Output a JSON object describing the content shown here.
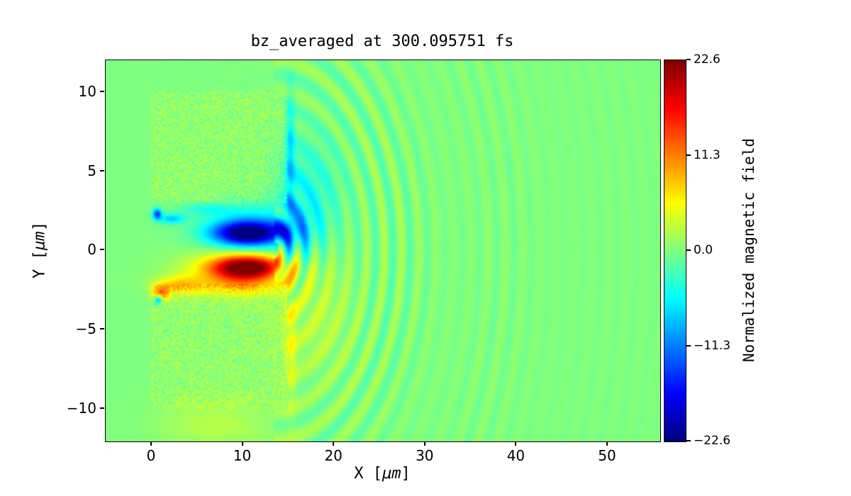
{
  "chart_data": {
    "type": "heatmap",
    "title": "bz_averaged at 300.095751 fs",
    "xlabel": "X [μm]",
    "ylabel": "Y [μm]",
    "colorbar_label": "Normalized magnetic field",
    "colormap": "jet",
    "grid": false,
    "xlim": [
      -5.05,
      55.75
    ],
    "ylim": [
      -12.05,
      12.0
    ],
    "clim": [
      -22.6,
      22.6
    ],
    "x_ticks": {
      "values": [
        0,
        10,
        20,
        30,
        40,
        50
      ],
      "labels": [
        "0",
        "10",
        "20",
        "30",
        "40",
        "50"
      ]
    },
    "y_ticks": {
      "values": [
        10,
        5,
        0,
        -5,
        -10
      ],
      "labels": [
        "10",
        "5",
        "0",
        "−5",
        "−10"
      ]
    },
    "colorbar_ticks": {
      "values": [
        22.6,
        11.3,
        0.0,
        -11.3,
        -22.6
      ],
      "labels": [
        "22.6",
        "11.3",
        "0.0",
        "−11.3",
        "−22.6"
      ]
    },
    "features": {
      "background_value": 0,
      "target_blocks": [
        {
          "x": [
            0,
            14.8
          ],
          "y": [
            3.0,
            10.0
          ],
          "speckle_amplitude": 2.2,
          "bias": 0.8
        },
        {
          "x": [
            0,
            14.8
          ],
          "y": [
            -10.0,
            -2.1
          ],
          "speckle_amplitude": 2.2,
          "bias": 0.8
        }
      ],
      "channel": {
        "x": [
          0,
          14.8
        ],
        "y": [
          -2.1,
          3.0
        ]
      },
      "blobs": [
        {
          "name": "blue-core",
          "peak": -20,
          "center": [
            10.5,
            1.05
          ],
          "sigma": [
            3.8,
            0.75
          ]
        },
        {
          "name": "blue-halo",
          "peak": -7,
          "center": [
            11.0,
            1.5
          ],
          "sigma": [
            5.0,
            1.3
          ]
        },
        {
          "name": "red-core",
          "peak": 21,
          "center": [
            10.5,
            -1.05
          ],
          "sigma": [
            3.6,
            0.7
          ]
        },
        {
          "name": "orange-halo",
          "peak": 8,
          "center": [
            9.0,
            -1.4
          ],
          "sigma": [
            5.5,
            1.2
          ]
        },
        {
          "name": "orange-wisp",
          "peak": 7,
          "center": [
            3.0,
            -2.2
          ],
          "sigma": [
            2.5,
            0.55
          ]
        },
        {
          "name": "orange-spot",
          "peak": 10,
          "center": [
            1.0,
            -2.7
          ],
          "sigma": [
            0.9,
            0.5
          ]
        },
        {
          "name": "dark-spot-lower-left",
          "peak": -12,
          "center": [
            0.7,
            -3.1
          ],
          "sigma": [
            0.45,
            0.3
          ]
        },
        {
          "name": "blue-spot-upper-left",
          "peak": -14,
          "center": [
            0.6,
            2.3
          ],
          "sigma": [
            0.5,
            0.35
          ]
        },
        {
          "name": "cyan-streak",
          "peak": -8,
          "center": [
            2.2,
            2.0
          ],
          "sigma": [
            1.4,
            0.3
          ]
        },
        {
          "name": "cyan-channel-edge",
          "peak": -3.5,
          "center": [
            6.0,
            2.6
          ],
          "sigma": [
            3.0,
            0.4
          ]
        },
        {
          "name": "warm-channel-edge",
          "peak": 4,
          "center": [
            10.0,
            -2.2
          ],
          "sigma": [
            4.0,
            0.6
          ]
        },
        {
          "name": "teal-region-above-exit",
          "peak": -4.5,
          "center": [
            17.0,
            3.5
          ],
          "sigma": [
            3.5,
            3.5
          ]
        },
        {
          "name": "teal-near-exit",
          "peak": -3,
          "center": [
            16.0,
            1.0
          ],
          "sigma": [
            2.0,
            2.0
          ]
        },
        {
          "name": "warm-region-below-exit",
          "peak": 2.5,
          "center": [
            18.0,
            -4.0
          ],
          "sigma": [
            4.0,
            4.0
          ]
        },
        {
          "name": "cyan-stripe-upper-block-edge",
          "peak": -6,
          "center": [
            15.2,
            6.0
          ],
          "sigma": [
            0.5,
            4.0
          ]
        },
        {
          "name": "yellow-stripe-lower-block-edge",
          "peak": 4,
          "center": [
            15.3,
            -6.0
          ],
          "sigma": [
            0.6,
            4.0
          ]
        },
        {
          "name": "yellow-strip-below-block",
          "peak": 2.5,
          "center": [
            7.0,
            -11.0
          ],
          "sigma": [
            6.0,
            1.5
          ]
        }
      ],
      "wavefronts": {
        "center": [
          13.5,
          0
        ],
        "wavelength_um": 1.9,
        "phase": -0.41,
        "amplitude_near": 6.0,
        "amplitude_far": 1.6,
        "decay_near": 9,
        "decay_far": 22,
        "max_visible_radius_um": 31
      }
    }
  }
}
